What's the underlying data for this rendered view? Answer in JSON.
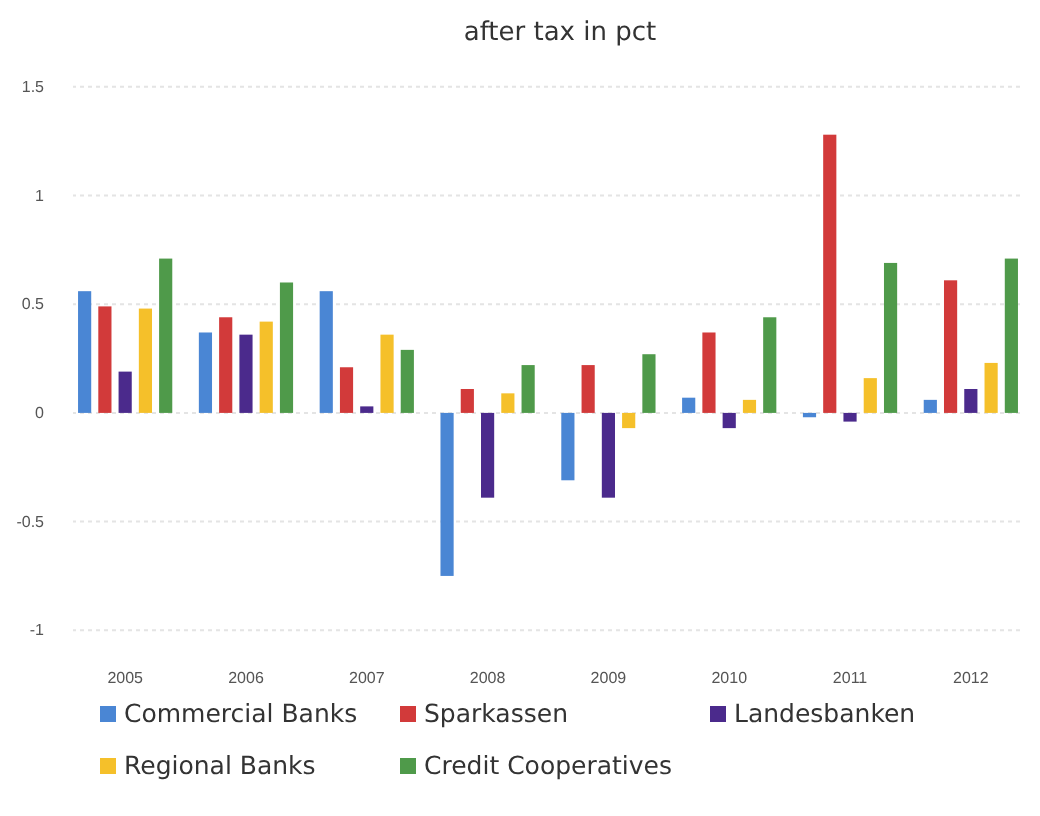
{
  "chart_data": {
    "type": "bar",
    "title": "after tax in pct",
    "categories": [
      "2005",
      "2006",
      "2007",
      "2008",
      "2009",
      "2010",
      "2011",
      "2012"
    ],
    "series": [
      {
        "name": "Commercial Banks",
        "color": "#4a86d4",
        "values": [
          0.56,
          0.37,
          0.56,
          -0.75,
          -0.31,
          0.07,
          -0.02,
          0.06
        ]
      },
      {
        "name": "Sparkassen",
        "color": "#d23a3a",
        "values": [
          0.49,
          0.44,
          0.21,
          0.11,
          0.22,
          0.37,
          1.28,
          0.61
        ]
      },
      {
        "name": "Landesbanken",
        "color": "#4b2a8c",
        "values": [
          0.19,
          0.36,
          0.03,
          -0.39,
          -0.39,
          -0.07,
          -0.04,
          0.11
        ]
      },
      {
        "name": "Regional Banks",
        "color": "#f5c02a",
        "values": [
          0.48,
          0.42,
          0.36,
          0.09,
          -0.07,
          0.06,
          0.16,
          0.23
        ]
      },
      {
        "name": "Credit Cooperatives",
        "color": "#4f9a4a",
        "values": [
          0.71,
          0.6,
          0.29,
          0.22,
          0.27,
          0.44,
          0.69,
          0.71
        ]
      }
    ],
    "ylim": [
      -1.1,
      1.55
    ],
    "yticks": [
      -1,
      -0.5,
      0,
      0.5,
      1,
      1.5
    ],
    "grid": "y",
    "legend": "bottom"
  }
}
